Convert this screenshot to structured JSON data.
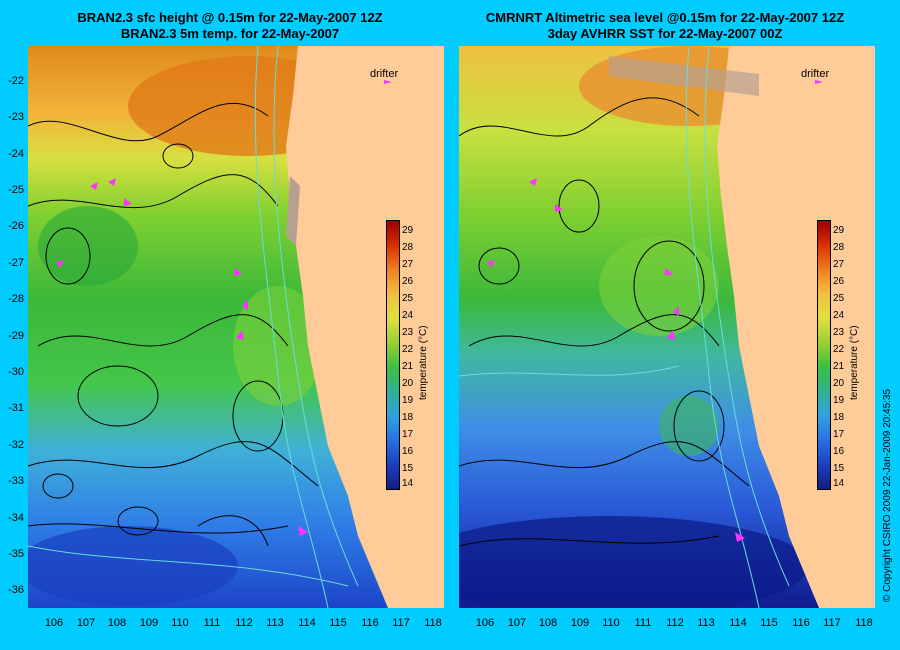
{
  "left_panel": {
    "title_line1": "BRAN2.3 sfc height @ 0.15m for 22-May-2007 12Z",
    "title_line2": "BRAN2.3 5m temp. for 22-May-2007",
    "drifter_label": "drifter"
  },
  "right_panel": {
    "title_line1": "CMRNRT Altimetric sea level  @0.15m  for 22-May-2007 12Z",
    "title_line2": "3day AVHRR SST for 22-May-2007 00Z",
    "drifter_label": "drifter"
  },
  "latitudes": [
    "-22",
    "-23",
    "-24",
    "-25",
    "-26",
    "-27",
    "-28",
    "-29",
    "-30",
    "-31",
    "-32",
    "-33",
    "-34",
    "-35",
    "-36"
  ],
  "longitudes": [
    "106",
    "107",
    "108",
    "109",
    "110",
    "111",
    "112",
    "113",
    "114",
    "115",
    "116",
    "117",
    "118"
  ],
  "colorbar": {
    "ticks": [
      "29",
      "28",
      "27",
      "26",
      "25",
      "24",
      "23",
      "22",
      "21",
      "20",
      "19",
      "18",
      "17",
      "16",
      "15",
      "14"
    ],
    "title": "temperature (°C)"
  },
  "copyright": "© Copyright CSIRO 2009   22-Jan-2009 20:45:35",
  "colors": {
    "background": "#00ccff",
    "land": "#ffcc99",
    "drifter": "#ff33ff",
    "contour": "#000000",
    "coastline_bathy": "#66dddd"
  }
}
